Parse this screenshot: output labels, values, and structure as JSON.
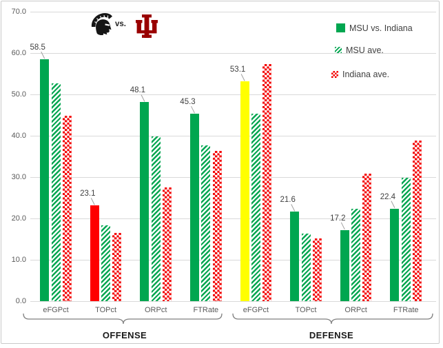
{
  "header": {
    "msu_logo": "michigan-state-spartan-helmet",
    "vs_label": "vs.",
    "iu_logo": "indiana-iu-trident"
  },
  "legend": {
    "position": "right-top",
    "items": [
      {
        "label": "MSU vs. Indiana",
        "swatch": "solid-green-square"
      },
      {
        "label": "MSU ave.",
        "swatch": "green-diagonal-hatch-square"
      },
      {
        "label": "Indiana ave.",
        "swatch": "red-checker-square"
      }
    ]
  },
  "colors": {
    "green": "#00a650",
    "red": "#fe0000",
    "yellow": "#ffff00",
    "iu_crimson": "#990000",
    "gridline": "#d9d9d9",
    "axis_text": "#595959",
    "data_label_text": "#3f3f3f",
    "bracket": "#7f7f7f"
  },
  "chart_data": {
    "type": "bar",
    "title": "",
    "grid": true,
    "ylim": [
      0,
      70
    ],
    "yticks": [
      "0.0",
      "10.0",
      "20.0",
      "30.0",
      "40.0",
      "50.0",
      "60.0",
      "70.0"
    ],
    "legend_position": "right-top",
    "sections": [
      {
        "label": "OFFENSE",
        "categories": [
          "eFGPct",
          "TOPct",
          "ORPct",
          "FTRate"
        ]
      },
      {
        "label": "DEFENSE",
        "categories": [
          "eFGPct",
          "TOPct",
          "ORPct",
          "FTRate"
        ]
      }
    ],
    "categories": [
      "eFGPct",
      "TOPct",
      "ORPct",
      "FTRate",
      "eFGPct",
      "TOPct",
      "ORPct",
      "FTRate"
    ],
    "series": [
      {
        "name": "MSU vs. Indiana",
        "values": [
          58.5,
          23.1,
          48.1,
          45.3,
          53.1,
          21.6,
          17.2,
          22.4
        ],
        "data_labels": [
          "58.5",
          "23.1",
          "48.1",
          "45.3",
          "53.1",
          "21.6",
          "17.2",
          "22.4"
        ],
        "bar_colors": [
          "green",
          "red",
          "green",
          "green",
          "yellow",
          "green",
          "green",
          "green"
        ],
        "pattern": "solid"
      },
      {
        "name": "MSU ave.",
        "values": [
          52.7,
          18.4,
          39.8,
          37.7,
          45.3,
          16.4,
          22.4,
          29.8
        ],
        "pattern": "diagonal-hatch"
      },
      {
        "name": "Indiana ave.",
        "values": [
          44.8,
          16.5,
          27.5,
          36.4,
          57.4,
          15.2,
          30.8,
          38.8
        ],
        "pattern": "checker"
      }
    ]
  }
}
